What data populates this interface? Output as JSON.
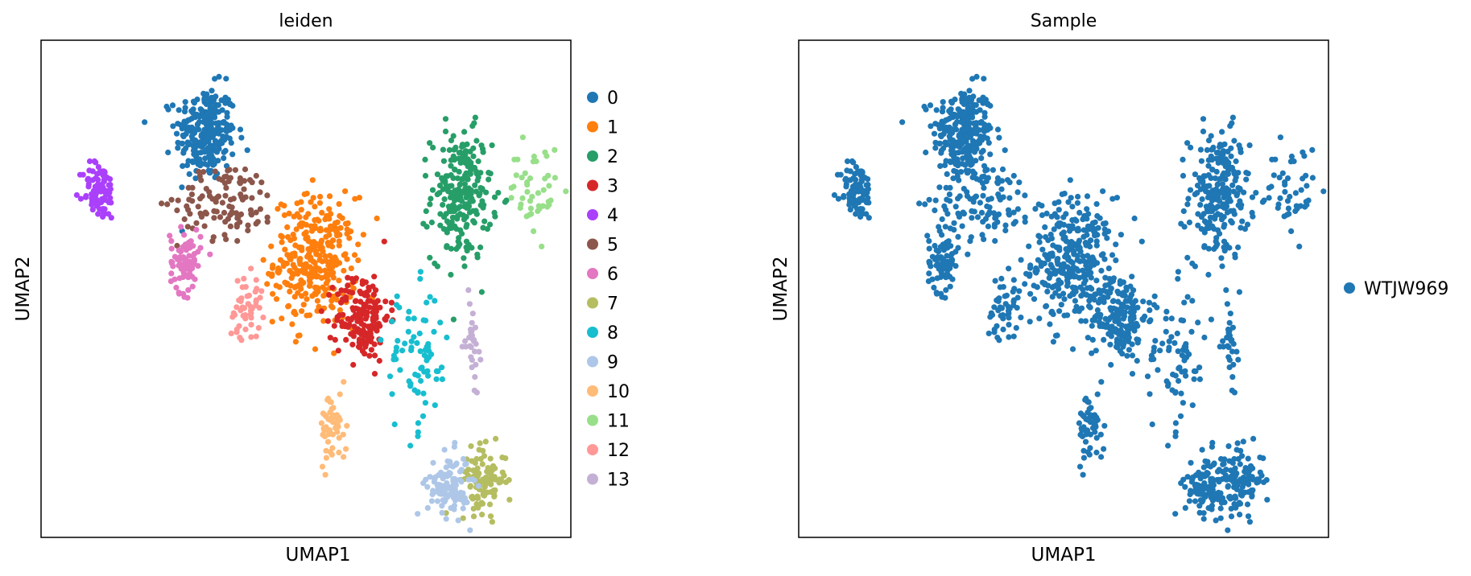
{
  "chart_data": [
    {
      "type": "scatter",
      "title": "leiden",
      "xlabel": "UMAP1",
      "ylabel": "UMAP2",
      "ticks": "none",
      "grid": false,
      "legend_placement": "right",
      "legend_title": "",
      "series": [
        {
          "name": "0",
          "color": "#1f77b4",
          "center": [
            4.2,
            7.55
          ],
          "spread": [
            0.55,
            0.62
          ],
          "count": 260
        },
        {
          "name": "1",
          "color": "#ff7f0e",
          "center": [
            7.2,
            5.0
          ],
          "spread": [
            0.75,
            0.85
          ],
          "count": 320
        },
        {
          "name": "2",
          "color": "#279e68",
          "center": [
            11.2,
            6.3
          ],
          "spread": [
            0.55,
            0.85
          ],
          "count": 230
        },
        {
          "name": "3",
          "color": "#d62728",
          "center": [
            8.5,
            3.9
          ],
          "spread": [
            0.48,
            0.58
          ],
          "count": 170
        },
        {
          "name": "4",
          "color": "#aa40fc",
          "center": [
            1.3,
            6.4
          ],
          "spread": [
            0.3,
            0.38
          ],
          "count": 90
        },
        {
          "name": "5",
          "color": "#8c564b",
          "center": [
            4.8,
            6.2
          ],
          "spread": [
            0.9,
            0.5
          ],
          "count": 110
        },
        {
          "name": "6",
          "color": "#e377c2",
          "center": [
            3.65,
            5.0
          ],
          "spread": [
            0.28,
            0.42
          ],
          "count": 80
        },
        {
          "name": "7",
          "color": "#b5bd61",
          "center": [
            11.8,
            0.65
          ],
          "spread": [
            0.42,
            0.42
          ],
          "count": 110
        },
        {
          "name": "8",
          "color": "#17becf",
          "center": [
            10.0,
            3.0
          ],
          "spread": [
            0.6,
            0.95
          ],
          "count": 75
        },
        {
          "name": "9",
          "color": "#aec7e8",
          "center": [
            10.85,
            0.55
          ],
          "spread": [
            0.38,
            0.42
          ],
          "count": 110
        },
        {
          "name": "10",
          "color": "#ffbb78",
          "center": [
            7.7,
            1.7
          ],
          "spread": [
            0.25,
            0.48
          ],
          "count": 55
        },
        {
          "name": "11",
          "color": "#98df8a",
          "center": [
            13.2,
            6.4
          ],
          "spread": [
            0.45,
            0.6
          ],
          "count": 45
        },
        {
          "name": "12",
          "color": "#ff9896",
          "center": [
            5.3,
            4.1
          ],
          "spread": [
            0.3,
            0.42
          ],
          "count": 50
        },
        {
          "name": "13",
          "color": "#c5b0d5",
          "center": [
            11.5,
            3.4
          ],
          "spread": [
            0.12,
            0.55
          ],
          "count": 30
        }
      ],
      "xlim": [
        -0.3,
        14.2
      ],
      "ylim": [
        -0.5,
        9.4
      ]
    },
    {
      "type": "scatter",
      "title": "Sample",
      "xlabel": "UMAP1",
      "ylabel": "UMAP2",
      "ticks": "none",
      "grid": false,
      "legend_placement": "right",
      "series": [
        {
          "name": "WTJW969",
          "color": "#1f77b4"
        }
      ],
      "xlim": [
        -0.3,
        14.2
      ],
      "ylim": [
        -0.5,
        9.4
      ]
    }
  ]
}
